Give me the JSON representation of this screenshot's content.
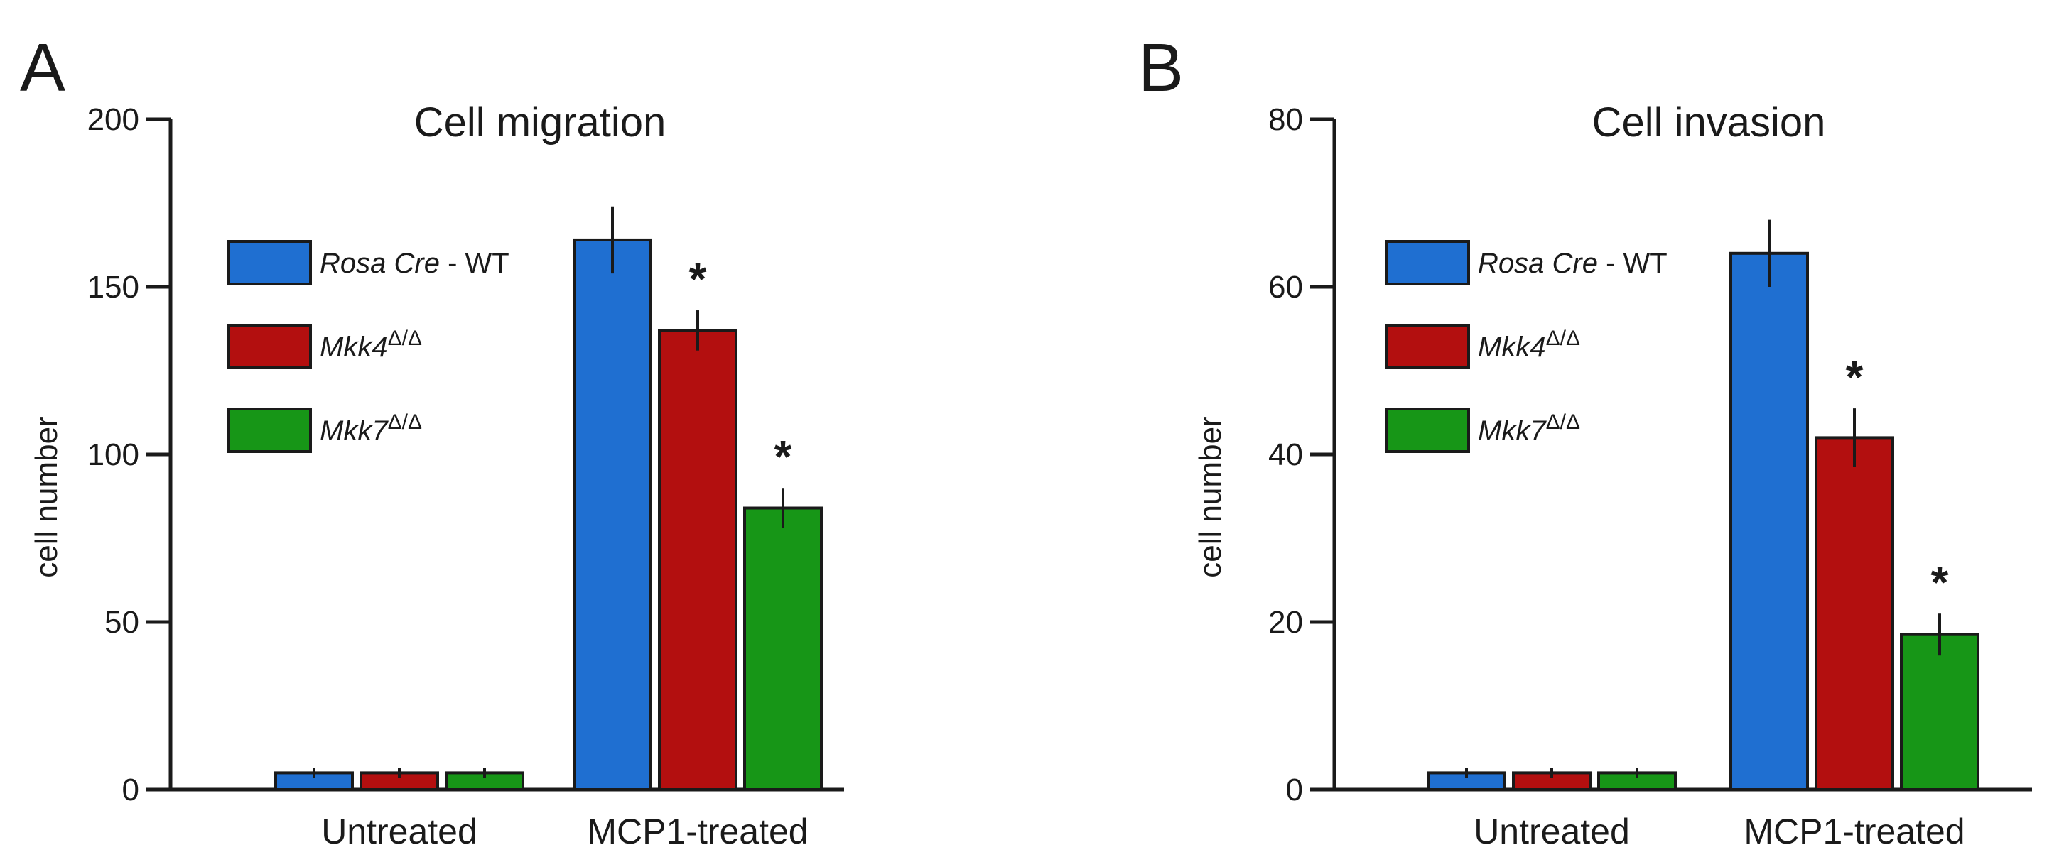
{
  "colors": {
    "wt": "#1f6fd1",
    "mkk4": "#b30f0f",
    "mkk7": "#179617"
  },
  "chart_data": [
    {
      "type": "bar",
      "panel_label": "A",
      "title": "Cell migration",
      "ylabel": "cell number",
      "xlabel": "",
      "ylim": [
        0,
        200
      ],
      "yticks": [
        "0",
        "50",
        "100",
        "150",
        "200"
      ],
      "categories": [
        "Untreated",
        "MCP1-treated"
      ],
      "series": [
        {
          "key": "wt",
          "name": "Rosa Cre - WT",
          "name_main": "Rosa Cre",
          "name_suffix": " - WT",
          "name_sup": "",
          "values": [
            5,
            164
          ],
          "errors": [
            1.5,
            10
          ],
          "significant": [
            false,
            false
          ]
        },
        {
          "key": "mkk4",
          "name": "Mkk4Δ/Δ",
          "name_main": "Mkk4",
          "name_suffix": "",
          "name_sup": "Δ/Δ",
          "values": [
            5,
            137
          ],
          "errors": [
            1.5,
            6
          ],
          "significant": [
            false,
            true
          ]
        },
        {
          "key": "mkk7",
          "name": "Mkk7Δ/Δ",
          "name_main": "Mkk7",
          "name_suffix": "",
          "name_sup": "Δ/Δ",
          "values": [
            5,
            84
          ],
          "errors": [
            1.5,
            6
          ],
          "significant": [
            false,
            true
          ]
        }
      ],
      "significance_marker": "*",
      "legend_position": "top-left"
    },
    {
      "type": "bar",
      "panel_label": "B",
      "title": "Cell invasion",
      "ylabel": "cell number",
      "xlabel": "",
      "ylim": [
        0,
        80
      ],
      "yticks": [
        "0",
        "20",
        "40",
        "60",
        "80"
      ],
      "categories": [
        "Untreated",
        "MCP1-treated"
      ],
      "series": [
        {
          "key": "wt",
          "name": "Rosa Cre - WT",
          "name_main": "Rosa Cre",
          "name_suffix": " - WT",
          "name_sup": "",
          "values": [
            2,
            64
          ],
          "errors": [
            0.6,
            4
          ],
          "significant": [
            false,
            false
          ]
        },
        {
          "key": "mkk4",
          "name": "Mkk4Δ/Δ",
          "name_main": "Mkk4",
          "name_suffix": "",
          "name_sup": "Δ/Δ",
          "values": [
            2,
            42
          ],
          "errors": [
            0.6,
            3.5
          ],
          "significant": [
            false,
            true
          ]
        },
        {
          "key": "mkk7",
          "name": "Mkk7Δ/Δ",
          "name_main": "Mkk7",
          "name_suffix": "",
          "name_sup": "Δ/Δ",
          "values": [
            2,
            18.5
          ],
          "errors": [
            0.6,
            2.5
          ],
          "significant": [
            false,
            true
          ]
        }
      ],
      "significance_marker": "*",
      "legend_position": "top-left"
    }
  ]
}
